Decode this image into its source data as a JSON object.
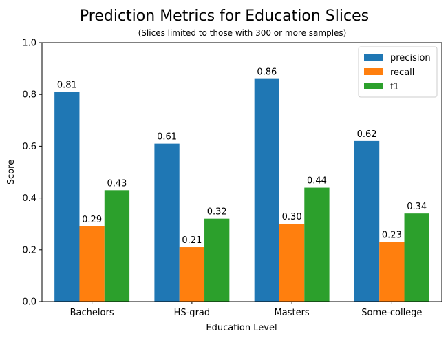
{
  "chart_data": {
    "type": "bar",
    "title": "Prediction Metrics for Education Slices",
    "subtitle": "(Slices limited to those with 300 or more samples)",
    "xlabel": "Education Level",
    "ylabel": "Score",
    "ylim": [
      0,
      1.0
    ],
    "yticks": [
      "0.0",
      "0.2",
      "0.4",
      "0.6",
      "0.8",
      "1.0"
    ],
    "categories": [
      "Bachelors",
      "HS-grad",
      "Masters",
      "Some-college"
    ],
    "series": [
      {
        "name": "precision",
        "color": "#1f77b4",
        "values": [
          0.81,
          0.61,
          0.86,
          0.62
        ],
        "labels": [
          "0.81",
          "0.61",
          "0.86",
          "0.62"
        ]
      },
      {
        "name": "recall",
        "color": "#ff7f0e",
        "values": [
          0.29,
          0.21,
          0.3,
          0.23
        ],
        "labels": [
          "0.29",
          "0.21",
          "0.30",
          "0.23"
        ]
      },
      {
        "name": "f1",
        "color": "#2ca02c",
        "values": [
          0.43,
          0.32,
          0.44,
          0.34
        ],
        "labels": [
          "0.43",
          "0.32",
          "0.44",
          "0.34"
        ]
      }
    ],
    "legend": "top-right",
    "grid": false
  }
}
